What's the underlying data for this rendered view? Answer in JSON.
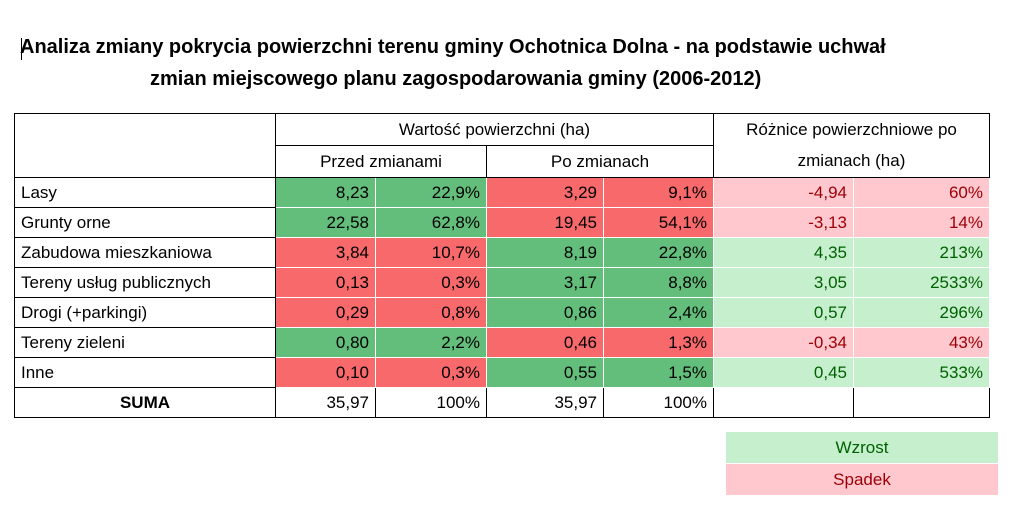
{
  "title": {
    "line1": "Analiza zmiany pokrycia powierzchni terenu gminy Ochotnica Dolna - na podstawie uchwał",
    "line2": "zmian miejscowego planu zagospodarowania gminy (2006-2012)"
  },
  "header": {
    "value_group": "Wartość powierzchni (ha)",
    "before": "Przed zmianami",
    "after": "Po zmianach",
    "diff_line1": "Różnice powierzchniowe po",
    "diff_line2": "zmianach (ha)"
  },
  "rows": [
    {
      "name": "Lasy",
      "before_ha": "8,23",
      "before_pct": "22,9%",
      "after_ha": "3,29",
      "after_pct": "9,1%",
      "diff_ha": "-4,94",
      "diff_pct": "60%",
      "trend": "down"
    },
    {
      "name": "Grunty orne",
      "before_ha": "22,58",
      "before_pct": "62,8%",
      "after_ha": "19,45",
      "after_pct": "54,1%",
      "diff_ha": "-3,13",
      "diff_pct": "14%",
      "trend": "down"
    },
    {
      "name": "Zabudowa mieszkaniowa",
      "before_ha": "3,84",
      "before_pct": "10,7%",
      "after_ha": "8,19",
      "after_pct": "22,8%",
      "diff_ha": "4,35",
      "diff_pct": "213%",
      "trend": "up"
    },
    {
      "name": "Tereny usług publicznych",
      "before_ha": "0,13",
      "before_pct": "0,3%",
      "after_ha": "3,17",
      "after_pct": "8,8%",
      "diff_ha": "3,05",
      "diff_pct": "2533%",
      "trend": "up"
    },
    {
      "name": "Drogi (+parkingi)",
      "before_ha": "0,29",
      "before_pct": "0,8%",
      "after_ha": "0,86",
      "after_pct": "2,4%",
      "diff_ha": "0,57",
      "diff_pct": "296%",
      "trend": "up"
    },
    {
      "name": "Tereny zieleni",
      "before_ha": "0,80",
      "before_pct": "2,2%",
      "after_ha": "0,46",
      "after_pct": "1,3%",
      "diff_ha": "-0,34",
      "diff_pct": "43%",
      "trend": "down"
    },
    {
      "name": "Inne",
      "before_ha": "0,10",
      "before_pct": "0,3%",
      "after_ha": "0,55",
      "after_pct": "1,5%",
      "diff_ha": "0,45",
      "diff_pct": "533%",
      "trend": "up"
    }
  ],
  "sum": {
    "label": "SUMA",
    "before_ha": "35,97",
    "before_pct": "100%",
    "after_ha": "35,97",
    "after_pct": "100%"
  },
  "legend": {
    "up": "Wzrost",
    "down": "Spadek"
  },
  "colors": {
    "green": "#63be7b",
    "red": "#f8696b",
    "light_green": "#c6efce",
    "light_red": "#ffc7ce",
    "green_text": "#006100",
    "red_text": "#9c0006"
  }
}
